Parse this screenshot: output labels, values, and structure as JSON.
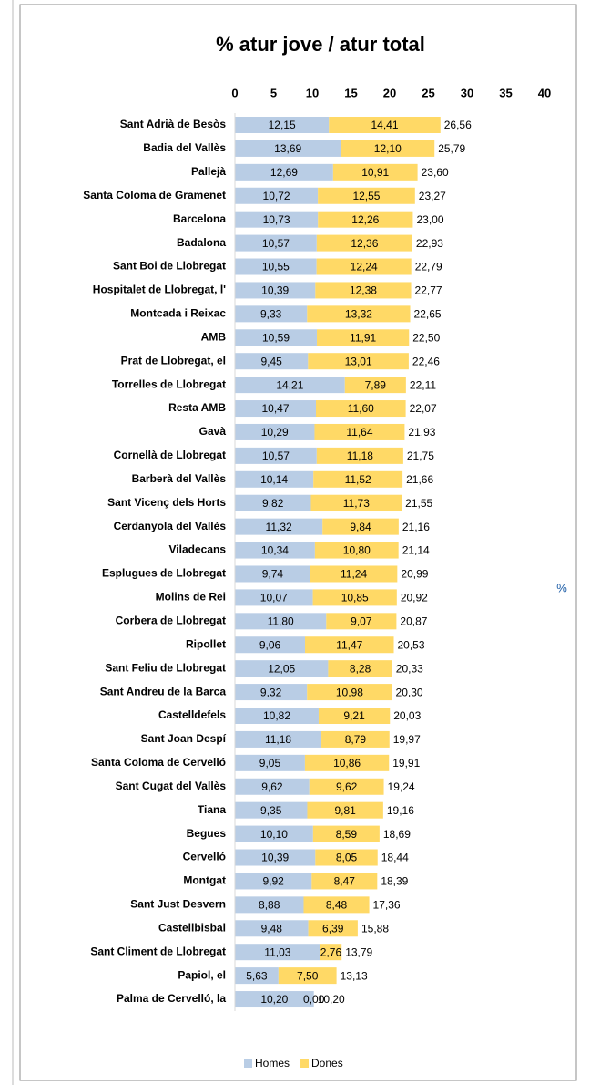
{
  "chart_data": {
    "type": "stacked_barh",
    "title": "% atur jove / atur total",
    "axis_label": "%",
    "categories": [
      "Sant Adrià de Besòs",
      "Badia del Vallès",
      "Pallejà",
      "Santa Coloma de Gramenet",
      "Barcelona",
      "Badalona",
      "Sant Boi de Llobregat",
      "Hospitalet de Llobregat, l'",
      "Montcada i Reixac",
      "AMB",
      "Prat de Llobregat, el",
      "Torrelles de Llobregat",
      "Resta AMB",
      "Gavà",
      "Cornellà de Llobregat",
      "Barberà del Vallès",
      "Sant Vicenç dels Horts",
      "Cerdanyola del Vallès",
      "Viladecans",
      "Esplugues de Llobregat",
      "Molins de Rei",
      "Corbera de Llobregat",
      "Ripollet",
      "Sant Feliu de Llobregat",
      "Sant Andreu de la Barca",
      "Castelldefels",
      "Sant Joan Despí",
      "Santa Coloma de Cervelló",
      "Sant Cugat del Vallès",
      "Tiana",
      "Begues",
      "Cervelló",
      "Montgat",
      "Sant Just Desvern",
      "Castellbisbal",
      "Sant Climent de Llobregat",
      "Papiol, el",
      "Palma de Cervelló, la"
    ],
    "series": [
      {
        "name": "Homes",
        "color": "#b9cde5",
        "values": [
          12.15,
          13.69,
          12.69,
          10.72,
          10.73,
          10.57,
          10.55,
          10.39,
          9.33,
          10.59,
          9.45,
          14.21,
          10.47,
          10.29,
          10.57,
          10.14,
          9.82,
          11.32,
          10.34,
          9.74,
          10.07,
          11.8,
          9.06,
          12.05,
          9.32,
          10.82,
          11.18,
          9.05,
          9.62,
          9.35,
          10.1,
          10.39,
          9.92,
          8.88,
          9.48,
          11.03,
          5.63,
          10.2
        ],
        "value_labels": [
          "12,15",
          "13,69",
          "12,69",
          "10,72",
          "10,73",
          "10,57",
          "10,55",
          "10,39",
          "9,33",
          "10,59",
          "9,45",
          "14,21",
          "10,47",
          "10,29",
          "10,57",
          "10,14",
          "9,82",
          "11,32",
          "10,34",
          "9,74",
          "10,07",
          "11,80",
          "9,06",
          "12,05",
          "9,32",
          "10,82",
          "11,18",
          "9,05",
          "9,62",
          "9,35",
          "10,10",
          "10,39",
          "9,92",
          "8,88",
          "9,48",
          "11,03",
          "5,63",
          "10,20"
        ]
      },
      {
        "name": "Dones",
        "color": "#ffd966",
        "values": [
          14.41,
          12.1,
          10.91,
          12.55,
          12.26,
          12.36,
          12.24,
          12.38,
          13.32,
          11.91,
          13.01,
          7.89,
          11.6,
          11.64,
          11.18,
          11.52,
          11.73,
          9.84,
          10.8,
          11.24,
          10.85,
          9.07,
          11.47,
          8.28,
          10.98,
          9.21,
          8.79,
          10.86,
          9.62,
          9.81,
          8.59,
          8.05,
          8.47,
          8.48,
          6.39,
          2.76,
          7.5,
          0.0
        ],
        "value_labels": [
          "14,41",
          "12,10",
          "10,91",
          "12,55",
          "12,26",
          "12,36",
          "12,24",
          "12,38",
          "13,32",
          "11,91",
          "13,01",
          "7,89",
          "11,60",
          "11,64",
          "11,18",
          "11,52",
          "11,73",
          "9,84",
          "10,80",
          "11,24",
          "10,85",
          "9,07",
          "11,47",
          "8,28",
          "10,98",
          "9,21",
          "8,79",
          "10,86",
          "9,62",
          "9,81",
          "8,59",
          "8,05",
          "8,47",
          "8,48",
          "6,39",
          "2,76",
          "7,50",
          "0,00"
        ]
      }
    ],
    "totals": [
      26.56,
      25.79,
      23.6,
      23.27,
      23.0,
      22.93,
      22.79,
      22.77,
      22.65,
      22.5,
      22.46,
      22.11,
      22.07,
      21.93,
      21.75,
      21.66,
      21.55,
      21.16,
      21.14,
      20.99,
      20.92,
      20.87,
      20.53,
      20.33,
      20.3,
      20.03,
      19.97,
      19.91,
      19.24,
      19.16,
      18.69,
      18.44,
      18.39,
      17.36,
      15.88,
      13.79,
      13.13,
      10.2
    ],
    "total_labels": [
      "26,56",
      "25,79",
      "23,60",
      "23,27",
      "23,00",
      "22,93",
      "22,79",
      "22,77",
      "22,65",
      "22,50",
      "22,46",
      "22,11",
      "22,07",
      "21,93",
      "21,75",
      "21,66",
      "21,55",
      "21,16",
      "21,14",
      "20,99",
      "20,92",
      "20,87",
      "20,53",
      "20,33",
      "20,30",
      "20,03",
      "19,97",
      "19,91",
      "19,24",
      "19,16",
      "18,69",
      "18,44",
      "18,39",
      "17,36",
      "15,88",
      "13,79",
      "13,13",
      "10,20"
    ],
    "xlim": [
      0,
      40
    ],
    "xticks": [
      0,
      5,
      10,
      15,
      20,
      25,
      30,
      35,
      40
    ],
    "legend": "bottom"
  }
}
